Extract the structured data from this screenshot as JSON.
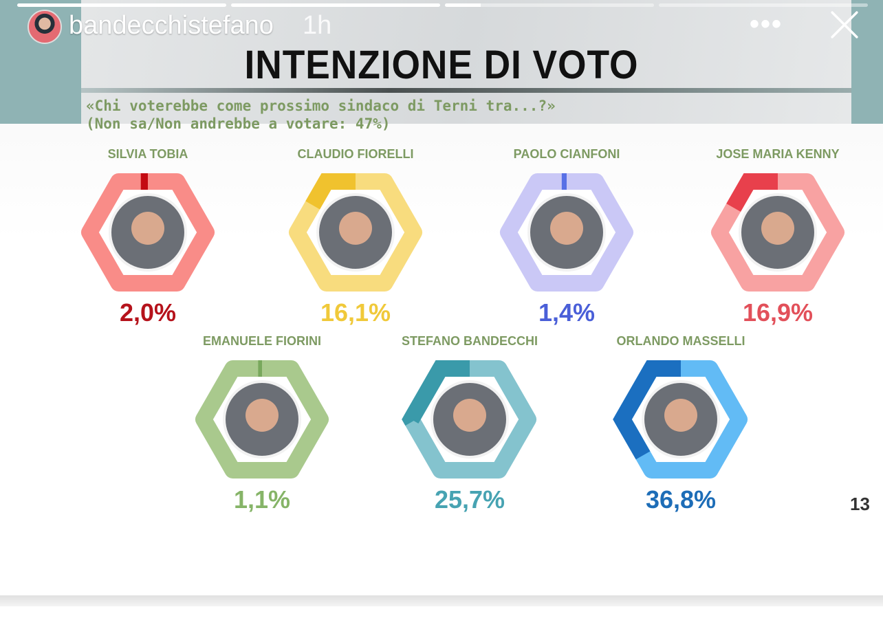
{
  "story": {
    "username": "bandecchistefano",
    "time": "1h",
    "more": "•••",
    "progress": [
      1,
      1,
      0.17,
      0
    ]
  },
  "header": {
    "title": "INTENZIONE DI VOTO",
    "question": "«Chi voterebbe come prossimo sindaco di Terni tra...?»",
    "note": "(Non sa/Non andrebbe a votare: 47%)"
  },
  "page_number": "13",
  "chart_data": {
    "type": "bar",
    "title": "INTENZIONE DI VOTO",
    "subtitle": "«Chi voterebbe come prossimo sindaco di Terni tra...?» (Non sa/Non andrebbe a votare: 47%)",
    "ylim": [
      0,
      100
    ],
    "categories": [
      "SILVIA TOBIA",
      "CLAUDIO FIORELLI",
      "PAOLO CIANFONI",
      "JOSE MARIA KENNY",
      "EMANUELE FIORINI",
      "STEFANO BANDECCHI",
      "ORLANDO MASSELLI"
    ],
    "values": [
      2.0,
      16.1,
      1.4,
      16.9,
      1.1,
      25.7,
      36.8
    ],
    "labels": [
      "2,0%",
      "16,1%",
      "1,4%",
      "16,9%",
      "1,1%",
      "25,7%",
      "36,8%"
    ],
    "colors": [
      {
        "light": "#f98c88",
        "dark": "#c40a12",
        "text": "#b5121b"
      },
      {
        "light": "#f8dc7e",
        "dark": "#f0c22e",
        "text": "#f0c93a"
      },
      {
        "light": "#cac8f6",
        "dark": "#5870e6",
        "text": "#4a5fd8"
      },
      {
        "light": "#f8a2a2",
        "dark": "#e8404c",
        "text": "#e2505a"
      },
      {
        "light": "#a9c98d",
        "dark": "#78a85c",
        "text": "#86b468"
      },
      {
        "light": "#84c3ce",
        "dark": "#3a9aaa",
        "text": "#47a3b2"
      },
      {
        "light": "#62bbf5",
        "dark": "#1b6fc0",
        "text": "#1d6db7"
      }
    ]
  }
}
